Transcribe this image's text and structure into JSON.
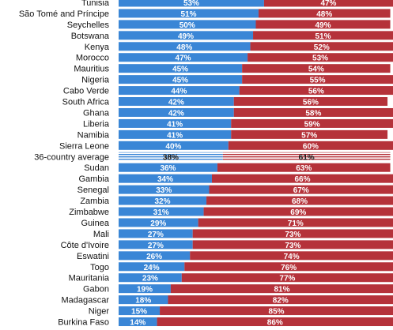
{
  "chart_data": {
    "type": "bar",
    "stacked": true,
    "orientation": "horizontal",
    "xlim": [
      0,
      100
    ],
    "grid": false,
    "series": [
      {
        "color": "#3a86d6",
        "values": [
          53,
          51,
          50,
          49,
          48,
          47,
          45,
          45,
          44,
          42,
          42,
          41,
          41,
          40,
          38,
          36,
          34,
          33,
          32,
          31,
          29,
          27,
          27,
          26,
          24,
          23,
          19,
          18,
          15,
          14
        ]
      },
      {
        "color": "#b5323a",
        "values": [
          47,
          48,
          49,
          51,
          52,
          53,
          54,
          55,
          56,
          56,
          58,
          59,
          57,
          60,
          61,
          63,
          66,
          67,
          68,
          69,
          71,
          73,
          73,
          74,
          76,
          77,
          81,
          82,
          85,
          86
        ]
      }
    ],
    "categories": [
      "Tunisia",
      "São Tomé and Príncipe",
      "Seychelles",
      "Botswana",
      "Kenya",
      "Morocco",
      "Mauritius",
      "Nigeria",
      "Cabo Verde",
      "South Africa",
      "Ghana",
      "Liberia",
      "Namibia",
      "Sierra Leone",
      "36-country average",
      "Sudan",
      "Gambia",
      "Senegal",
      "Zambia",
      "Zimbabwe",
      "Guinea",
      "Mali",
      "Côte d'Ivoire",
      "Eswatini",
      "Togo",
      "Mauritania",
      "Gabon",
      "Madagascar",
      "Niger",
      "Burkina Faso"
    ],
    "value_labels": [
      [
        "53%",
        "51%",
        "50%",
        "49%",
        "48%",
        "47%",
        "45%",
        "45%",
        "44%",
        "42%",
        "42%",
        "41%",
        "41%",
        "40%",
        "38%",
        "36%",
        "34%",
        "33%",
        "32%",
        "31%",
        "29%",
        "27%",
        "27%",
        "26%",
        "24%",
        "23%",
        "19%",
        "18%",
        "15%",
        "14%"
      ],
      [
        "47%",
        "48%",
        "49%",
        "51%",
        "52%",
        "53%",
        "54%",
        "55%",
        "56%",
        "56%",
        "58%",
        "59%",
        "57%",
        "60%",
        "61%",
        "63%",
        "66%",
        "67%",
        "68%",
        "69%",
        "71%",
        "73%",
        "73%",
        "74%",
        "76%",
        "77%",
        "81%",
        "82%",
        "85%",
        "86%"
      ]
    ],
    "highlight_category": "36-country average"
  }
}
